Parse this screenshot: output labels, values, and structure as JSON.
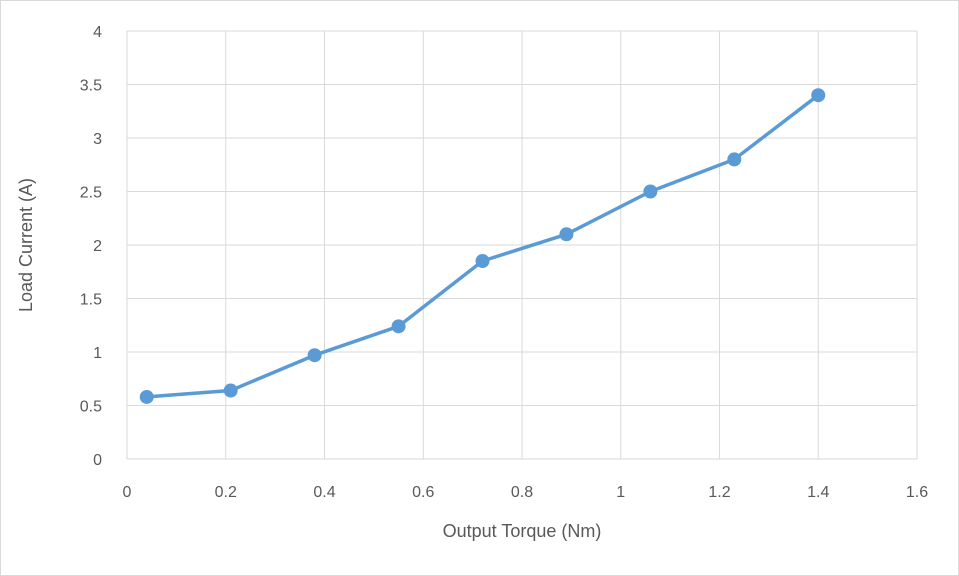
{
  "chart_data": {
    "type": "line",
    "title": "",
    "xlabel": "Output Torque (Nm)",
    "ylabel": "Load Current (A)",
    "xlim": [
      0,
      1.6
    ],
    "ylim": [
      0,
      4
    ],
    "x_ticks": [
      "0",
      "0.2",
      "0.4",
      "0.6",
      "0.8",
      "1",
      "1.2",
      "1.4",
      "1.6"
    ],
    "y_ticks": [
      "0",
      "0.5",
      "1",
      "1.5",
      "2",
      "2.5",
      "3",
      "3.5",
      "4"
    ],
    "grid": true,
    "legend": "none",
    "series": [
      {
        "color": "#5B9BD5",
        "marker": "circle",
        "x": [
          0.04,
          0.21,
          0.38,
          0.55,
          0.72,
          0.89,
          1.06,
          1.23,
          1.4
        ],
        "y": [
          0.58,
          0.64,
          0.97,
          1.24,
          1.85,
          2.1,
          2.5,
          2.8,
          3.4
        ]
      }
    ]
  }
}
